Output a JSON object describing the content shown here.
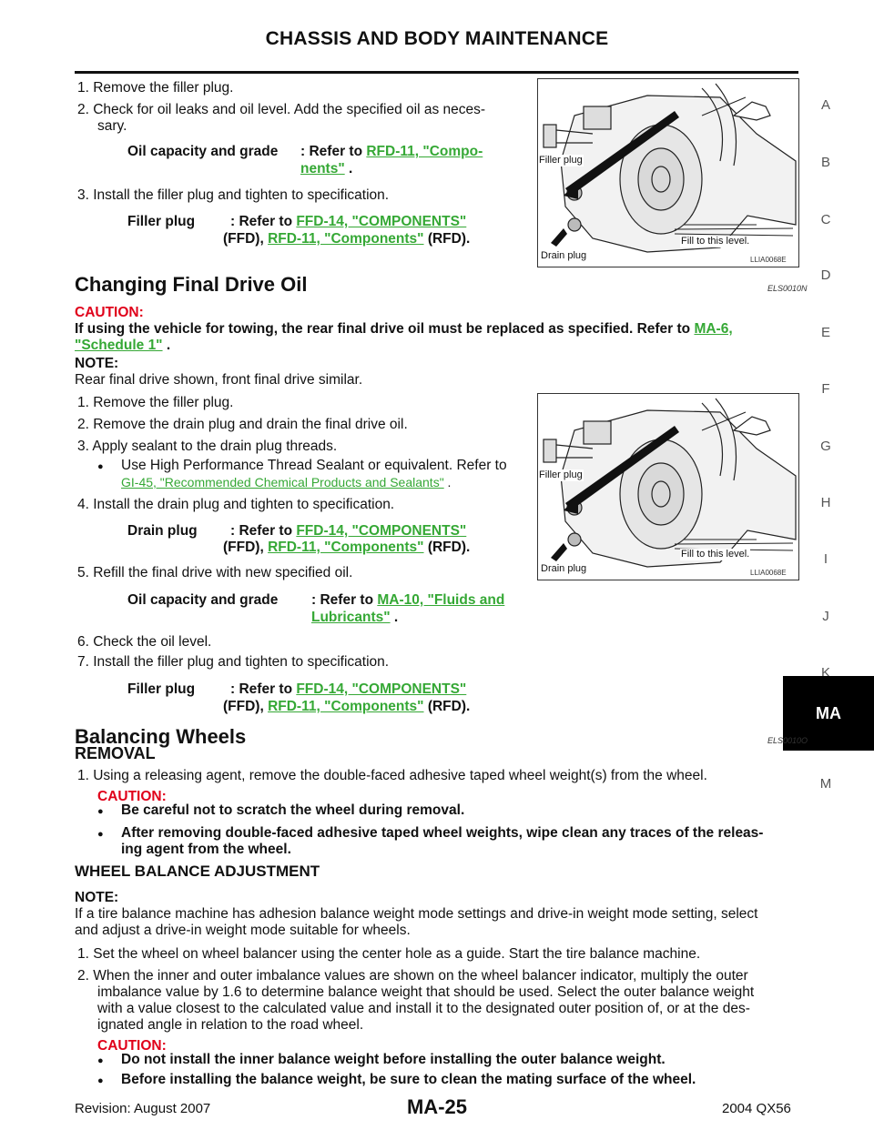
{
  "header": {
    "title": "CHASSIS AND BODY MAINTENANCE"
  },
  "side_index": [
    "A",
    "B",
    "C",
    "D",
    "E",
    "F",
    "G",
    "H",
    "I",
    "J",
    "K",
    "MA",
    "M"
  ],
  "section1": {
    "step1": "1.  Remove the filler plug.",
    "step2a": "2.  Check for oil leaks and oil level. Add the specified oil as neces-",
    "step2b": "sary.",
    "spec1_label": "Oil capacity and grade",
    "spec1_pre": ": Refer to ",
    "spec1_link_a": "RFD-11, \"Compo-",
    "spec1_link_b": "nents\"",
    "spec1_post": " .",
    "step3": "3.  Install the filler plug and tighten to specification.",
    "spec2_label": "Filler plug",
    "spec2_pre": ": Refer to ",
    "spec2_link1": "FFD-14, \"COMPONENTS\"",
    "spec2_mid": "(FFD), ",
    "spec2_link2": "RFD-11, \"Components\"",
    "spec2_post": " (RFD).",
    "figure": {
      "filler": "Filler plug",
      "fill": "Fill to this level.",
      "drain": "Drain plug",
      "code": "LLIA0068E"
    }
  },
  "section2": {
    "title": "Changing Final Drive Oil",
    "ref": "ELS0010N",
    "caution_label": "CAUTION:",
    "caution_text": "If using the vehicle for towing, the rear final drive oil must be replaced as specified. Refer to ",
    "caution_link_a": "MA-6,",
    "caution_link_b": "\"Schedule 1\"",
    "caution_post": " .",
    "note_label": "NOTE:",
    "note_text": "Rear final drive shown, front final drive similar.",
    "step1": "1.  Remove the filler plug.",
    "step2": "2.  Remove the drain plug and drain the final drive oil.",
    "step3": "3.  Apply sealant to the drain plug threads.",
    "bullet_text": "Use High Performance Thread Sealant or equivalent. Refer to",
    "bullet_link": "GI-45, \"Recommended Chemical Products and Sealants\"",
    "bullet_post": " .",
    "step4": "4.  Install the drain plug and tighten to specification.",
    "spec_drain_label": "Drain plug",
    "spec_drain_pre": ": Refer to ",
    "spec_drain_link1": "FFD-14, \"COMPONENTS\"",
    "spec_drain_mid": "(FFD), ",
    "spec_drain_link2": "RFD-11, \"Components\"",
    "spec_drain_post": " (RFD).",
    "step5": "5.  Refill the final drive with new specified oil.",
    "spec_oil_label": "Oil capacity and grade",
    "spec_oil_pre": ": Refer to ",
    "spec_oil_link_a": "MA-10, \"Fluids and",
    "spec_oil_link_b": "Lubricants\"",
    "spec_oil_post": " .",
    "step6": "6.  Check the oil level.",
    "step7": "7.  Install the filler plug and tighten to specification.",
    "spec_filler_label": "Filler plug",
    "spec_filler_pre": ": Refer to ",
    "spec_filler_link1": "FFD-14, \"COMPONENTS\"",
    "spec_filler_mid": "(FFD), ",
    "spec_filler_link2": "RFD-11, \"Components\"",
    "spec_filler_post": " (RFD).",
    "figure": {
      "filler": "Filler plug",
      "fill": "Fill to this level.",
      "drain": "Drain plug",
      "code": "LLIA0068E"
    }
  },
  "section3": {
    "title": "Balancing Wheels",
    "ref": "ELS0010O",
    "removal_title": "REMOVAL",
    "step1": "1.  Using a releasing agent, remove the double-faced adhesive taped wheel weight(s) from the wheel.",
    "caution_label": "CAUTION:",
    "caution1": "Be careful not to scratch the wheel during removal.",
    "caution2a": "After removing double-faced adhesive taped wheel weights, wipe clean any traces of the releas-",
    "caution2b": "ing agent from the wheel.",
    "adj_title": "WHEEL BALANCE ADJUSTMENT",
    "note_label": "NOTE:",
    "note_a": "If a tire balance machine has adhesion balance weight mode settings and drive-in weight mode setting, select",
    "note_b": "and adjust a drive-in weight mode suitable for wheels.",
    "adj1": "1.  Set the wheel on wheel balancer using the center hole as a guide. Start the tire balance machine.",
    "adj2a": "2.  When the inner and outer imbalance values are shown on the wheel balancer indicator, multiply the outer",
    "adj2b": "imbalance value by 1.6 to determine balance weight that should be used. Select the outer balance weight",
    "adj2c": "with a value closest to the calculated value and install it to the designated outer position of, or at the des-",
    "adj2d": "ignated angle in relation to the road wheel.",
    "caution2_label": "CAUTION:",
    "caution3": "Do not install the inner balance weight before installing the outer balance weight.",
    "caution4": "Before installing the balance weight, be sure to clean the mating surface of the wheel."
  },
  "footer": {
    "revision": "Revision: August 2007",
    "page": "MA-25",
    "model": "2004 QX56"
  }
}
